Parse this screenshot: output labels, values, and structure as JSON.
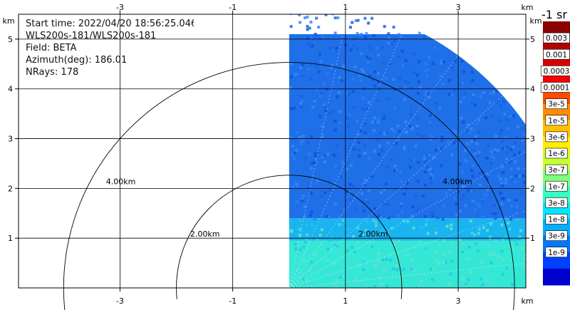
{
  "info": {
    "start_time": "Start time: 2022/04/20 18:56:25.046",
    "instrument": "WLS200s-181/WLS200s-181",
    "field": "Field: BETA",
    "azimuth": "Azimuth(deg): 186.01",
    "nrays": "NRays: 178"
  },
  "chart_data": {
    "type": "heatmap",
    "plot_kind": "lidar PPI scan (sector)",
    "field": "BETA",
    "azimuth_deg": 186.01,
    "nrays": 178,
    "sector_max_range_km": 5.1,
    "sector_x_start_km": 0.0,
    "xlim": [
      -4.8,
      4.2
    ],
    "ylim": [
      0,
      5.5
    ],
    "x_ticks": [
      "-3",
      "-1",
      "1",
      "3"
    ],
    "x_tick_values": [
      -3,
      -1,
      1,
      3
    ],
    "y_ticks": [
      "1",
      "2",
      "3",
      "4",
      "5"
    ],
    "y_tick_values": [
      1,
      2,
      3,
      4,
      5
    ],
    "x_unit": "km",
    "y_unit": "km",
    "range_rings": [
      {
        "radius_km": 2,
        "label": "2.00km"
      },
      {
        "radius_km": 4,
        "label": "4.00km"
      }
    ],
    "grid": true,
    "colorbar": {
      "title": "-1 sr",
      "labels": [
        "0.003",
        "0.001",
        "0.0003",
        "0.0001",
        "3e-5",
        "1e-5",
        "3e-6",
        "1e-6",
        "3e-7",
        "1e-7",
        "3e-8",
        "1e-8",
        "3e-9",
        "1e-9"
      ],
      "colors": [
        "#8b0000",
        "#b30000",
        "#d60000",
        "#f20000",
        "#ff4a00",
        "#ff8c00",
        "#ffbf00",
        "#ffee00",
        "#c8ff30",
        "#7dff7a",
        "#35ffc2",
        "#00e8ff",
        "#00b0ff",
        "#0078ff",
        "#0040ff",
        "#0000cc"
      ]
    },
    "range_bands_km": [
      {
        "y_from": 0.0,
        "y_to": 0.95,
        "color_level": "1e-7"
      },
      {
        "y_from": 0.95,
        "y_to": 1.4,
        "color_level": "3e-8"
      },
      {
        "y_from": 1.4,
        "y_to": 5.1,
        "color_level": "1e-8"
      }
    ]
  }
}
